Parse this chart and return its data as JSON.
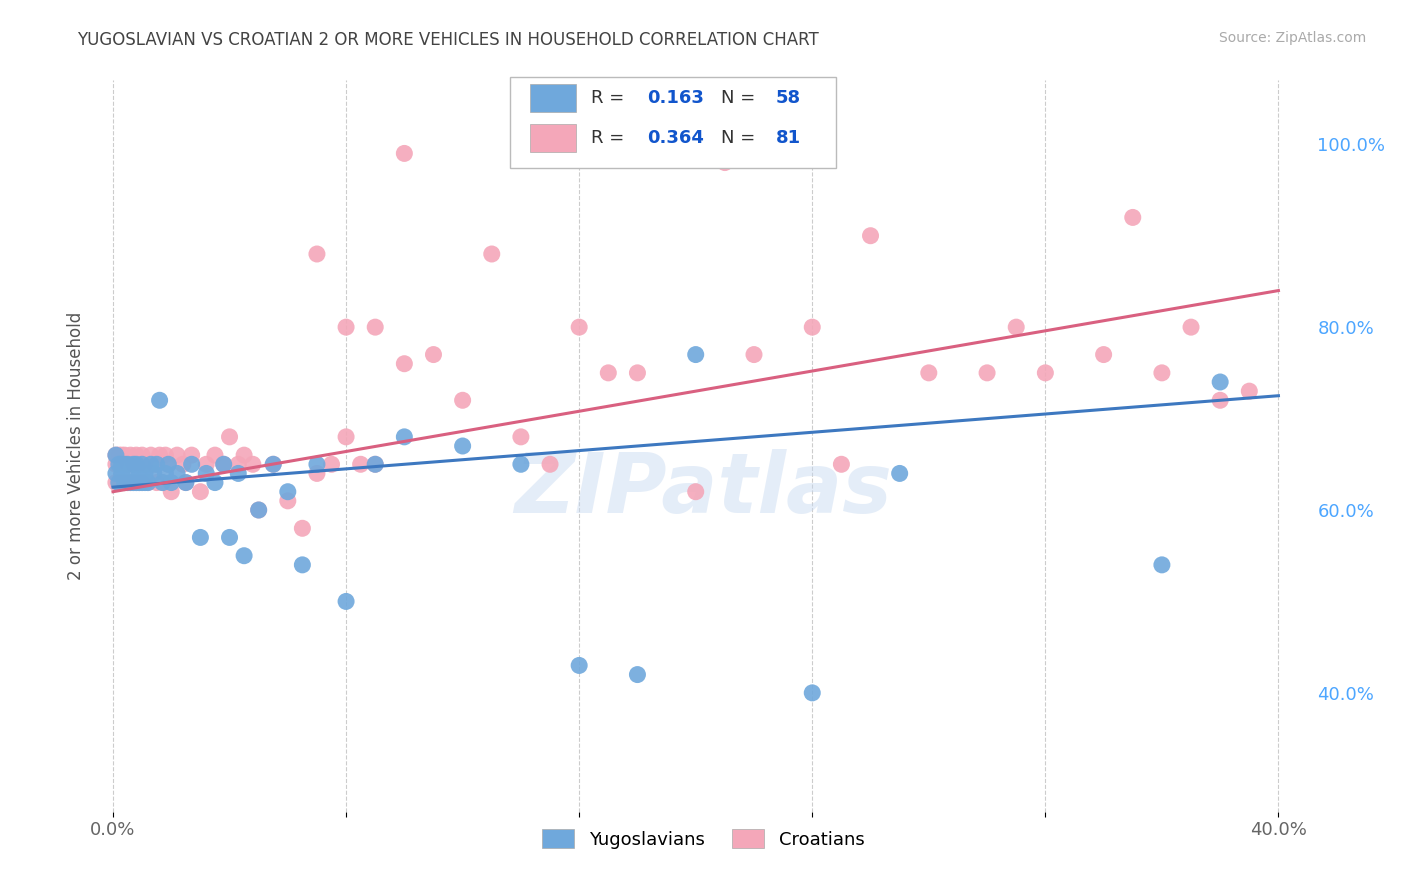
{
  "title": "YUGOSLAVIAN VS CROATIAN 2 OR MORE VEHICLES IN HOUSEHOLD CORRELATION CHART",
  "source": "Source: ZipAtlas.com",
  "ylabel": "2 or more Vehicles in Household",
  "watermark": "ZIPatlas",
  "xlim": [
    -0.005,
    0.41
  ],
  "ylim": [
    0.27,
    1.07
  ],
  "xtick_positions": [
    0.0,
    0.08,
    0.16,
    0.24,
    0.32,
    0.4
  ],
  "xtick_labels": [
    "0.0%",
    "",
    "",
    "",
    "",
    "40.0%"
  ],
  "ytick_positions": [
    1.0,
    0.8,
    0.6,
    0.4
  ],
  "ytick_labels": [
    "100.0%",
    "80.0%",
    "60.0%",
    "40.0%"
  ],
  "blue_color": "#6fa8dc",
  "pink_color": "#f4a7b9",
  "blue_line_color": "#3d78c0",
  "pink_line_color": "#d96080",
  "title_color": "#434343",
  "right_axis_color": "#4da6ff",
  "legend_text_color": "#1155cc",
  "grid_color": "#cccccc",
  "background_color": "#ffffff",
  "yug_x": [
    0.001,
    0.001,
    0.002,
    0.002,
    0.003,
    0.003,
    0.004,
    0.004,
    0.005,
    0.005,
    0.006,
    0.006,
    0.007,
    0.007,
    0.008,
    0.008,
    0.009,
    0.009,
    0.01,
    0.01,
    0.011,
    0.011,
    0.012,
    0.013,
    0.014,
    0.015,
    0.016,
    0.017,
    0.018,
    0.019,
    0.02,
    0.022,
    0.025,
    0.027,
    0.03,
    0.032,
    0.035,
    0.038,
    0.04,
    0.043,
    0.045,
    0.05,
    0.055,
    0.06,
    0.065,
    0.07,
    0.08,
    0.09,
    0.1,
    0.12,
    0.14,
    0.16,
    0.18,
    0.2,
    0.24,
    0.27,
    0.36,
    0.38
  ],
  "yug_y": [
    0.64,
    0.66,
    0.63,
    0.65,
    0.64,
    0.65,
    0.63,
    0.65,
    0.63,
    0.65,
    0.63,
    0.64,
    0.63,
    0.65,
    0.63,
    0.65,
    0.63,
    0.64,
    0.63,
    0.65,
    0.63,
    0.64,
    0.63,
    0.65,
    0.64,
    0.65,
    0.72,
    0.63,
    0.64,
    0.65,
    0.63,
    0.64,
    0.63,
    0.65,
    0.57,
    0.64,
    0.63,
    0.65,
    0.57,
    0.64,
    0.55,
    0.6,
    0.65,
    0.62,
    0.54,
    0.65,
    0.5,
    0.65,
    0.68,
    0.67,
    0.65,
    0.43,
    0.42,
    0.77,
    0.4,
    0.64,
    0.54,
    0.74
  ],
  "cro_x": [
    0.001,
    0.001,
    0.001,
    0.002,
    0.002,
    0.003,
    0.003,
    0.004,
    0.004,
    0.005,
    0.005,
    0.006,
    0.006,
    0.007,
    0.007,
    0.008,
    0.008,
    0.009,
    0.009,
    0.01,
    0.01,
    0.011,
    0.012,
    0.013,
    0.014,
    0.015,
    0.016,
    0.017,
    0.018,
    0.019,
    0.02,
    0.022,
    0.024,
    0.025,
    0.027,
    0.03,
    0.032,
    0.035,
    0.038,
    0.04,
    0.043,
    0.045,
    0.048,
    0.05,
    0.055,
    0.06,
    0.065,
    0.07,
    0.075,
    0.08,
    0.085,
    0.09,
    0.1,
    0.11,
    0.12,
    0.14,
    0.16,
    0.18,
    0.2,
    0.22,
    0.24,
    0.26,
    0.28,
    0.3,
    0.32,
    0.34,
    0.36,
    0.37,
    0.38,
    0.39,
    0.1,
    0.21,
    0.13,
    0.07,
    0.08,
    0.09,
    0.15,
    0.17,
    0.25,
    0.31,
    0.35
  ],
  "cro_y": [
    0.63,
    0.65,
    0.66,
    0.63,
    0.66,
    0.63,
    0.66,
    0.63,
    0.66,
    0.63,
    0.65,
    0.63,
    0.66,
    0.63,
    0.65,
    0.63,
    0.66,
    0.63,
    0.65,
    0.63,
    0.66,
    0.65,
    0.63,
    0.66,
    0.65,
    0.63,
    0.66,
    0.63,
    0.66,
    0.65,
    0.62,
    0.66,
    0.65,
    0.63,
    0.66,
    0.62,
    0.65,
    0.66,
    0.65,
    0.68,
    0.65,
    0.66,
    0.65,
    0.6,
    0.65,
    0.61,
    0.58,
    0.64,
    0.65,
    0.68,
    0.65,
    0.65,
    0.76,
    0.77,
    0.72,
    0.68,
    0.8,
    0.75,
    0.62,
    0.77,
    0.8,
    0.9,
    0.75,
    0.75,
    0.75,
    0.77,
    0.75,
    0.8,
    0.72,
    0.73,
    0.99,
    0.98,
    0.88,
    0.88,
    0.8,
    0.8,
    0.65,
    0.75,
    0.65,
    0.8,
    0.92
  ],
  "yug_line_x": [
    0.0,
    0.4
  ],
  "yug_line_y": [
    0.625,
    0.725
  ],
  "cro_line_x": [
    0.0,
    0.4
  ],
  "cro_line_y": [
    0.62,
    0.84
  ]
}
